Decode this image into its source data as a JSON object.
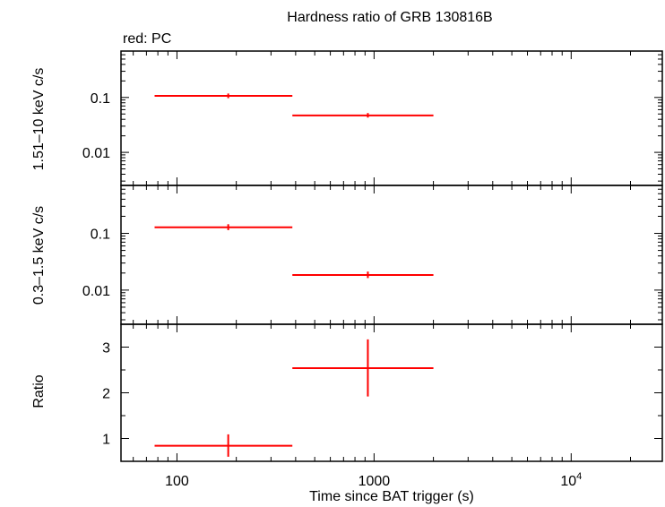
{
  "chart_data": {
    "type": "scatter",
    "title": "Hardness ratio of GRB 130816B",
    "subtitle": "red: PC",
    "xlabel": "Time since BAT trigger (s)",
    "x_scale": "log",
    "xlim": [
      52,
      29000
    ],
    "x_ticks": [
      {
        "value": 100,
        "label": "100"
      },
      {
        "value": 1000,
        "label": "1000"
      },
      {
        "value": 10000,
        "label": "10",
        "sup": "4"
      }
    ],
    "series_color": "#ff0000",
    "panels": [
      {
        "id": "hard",
        "ylabel": "1.51–10 keV c/s",
        "y_scale": "log",
        "ylim": [
          0.0025,
          0.7
        ],
        "y_ticks": [
          {
            "value": 0.1,
            "label": "0.1"
          },
          {
            "value": 0.01,
            "label": "0.01"
          }
        ],
        "points": [
          {
            "x": 182,
            "x_lo": 77,
            "x_hi": 385,
            "y": 0.107,
            "y_lo": 0.097,
            "y_hi": 0.118
          },
          {
            "x": 930,
            "x_lo": 385,
            "x_hi": 2000,
            "y": 0.047,
            "y_lo": 0.043,
            "y_hi": 0.052
          }
        ]
      },
      {
        "id": "soft",
        "ylabel": "0.3–1.5 keV c/s",
        "y_scale": "log",
        "ylim": [
          0.0025,
          0.7
        ],
        "y_ticks": [
          {
            "value": 0.1,
            "label": "0.1"
          },
          {
            "value": 0.01,
            "label": "0.01"
          }
        ],
        "points": [
          {
            "x": 182,
            "x_lo": 77,
            "x_hi": 385,
            "y": 0.128,
            "y_lo": 0.114,
            "y_hi": 0.145
          },
          {
            "x": 930,
            "x_lo": 385,
            "x_hi": 2000,
            "y": 0.0185,
            "y_lo": 0.0163,
            "y_hi": 0.0212
          }
        ]
      },
      {
        "id": "ratio",
        "ylabel": "Ratio",
        "y_scale": "linear",
        "ylim": [
          0.5,
          3.5
        ],
        "y_ticks": [
          {
            "value": 1,
            "label": "1"
          },
          {
            "value": 2,
            "label": "2"
          },
          {
            "value": 3,
            "label": "3"
          }
        ],
        "points": [
          {
            "x": 182,
            "x_lo": 77,
            "x_hi": 385,
            "y": 0.84,
            "y_lo": 0.6,
            "y_hi": 1.09
          },
          {
            "x": 930,
            "x_lo": 385,
            "x_hi": 2000,
            "y": 2.54,
            "y_lo": 1.92,
            "y_hi": 3.17
          }
        ]
      }
    ]
  }
}
